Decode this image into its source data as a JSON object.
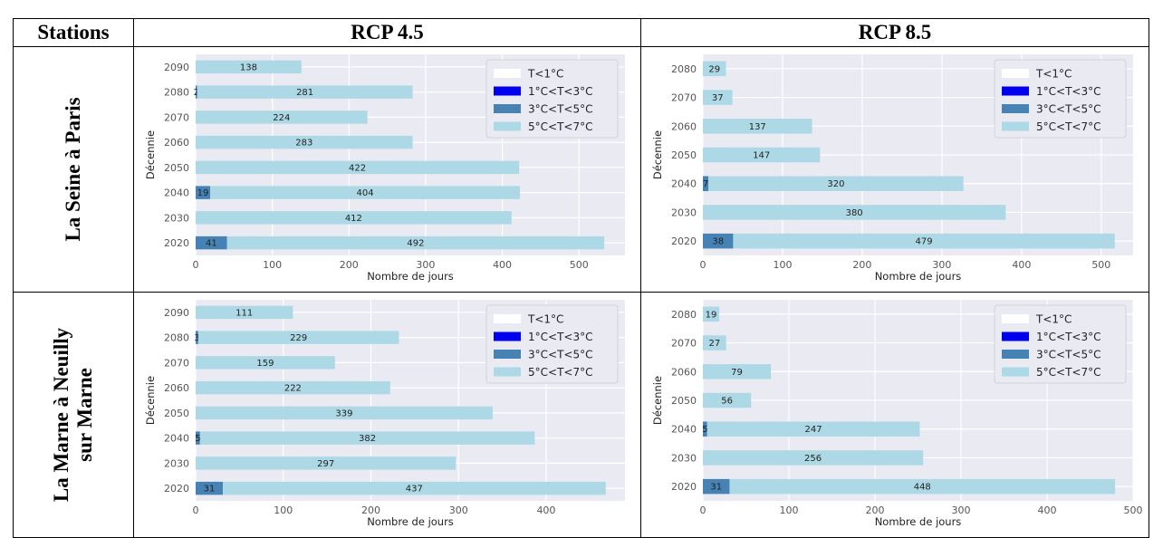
{
  "table": {
    "header": {
      "stations": "Stations",
      "rcp45": "RCP 4.5",
      "rcp85": "RCP 8.5"
    },
    "rows": [
      {
        "station_lines": [
          "La Seine à Paris"
        ]
      },
      {
        "station_lines": [
          "La Marne à Neuilly",
          "sur Marne"
        ]
      }
    ]
  },
  "chart_data": [
    {
      "type": "bar",
      "orientation": "horizontal",
      "stacked": true,
      "station": "La Seine à Paris",
      "scenario": "RCP 4.5",
      "xlabel": "Nombre de jours",
      "ylabel": "Décennie",
      "xlim": [
        0,
        560
      ],
      "xticks": [
        0,
        100,
        200,
        300,
        400,
        500
      ],
      "categories": [
        "2020",
        "2030",
        "2040",
        "2050",
        "2060",
        "2070",
        "2080",
        "2090"
      ],
      "series": [
        {
          "name": "T<1°C",
          "color": "#ffffff",
          "values": [
            0,
            0,
            0,
            0,
            0,
            0,
            0,
            0
          ]
        },
        {
          "name": "1°C<T<3°C",
          "color": "#0000ee",
          "values": [
            0,
            0,
            0,
            0,
            0,
            0,
            0,
            0
          ]
        },
        {
          "name": "3°C<T<5°C",
          "color": "#4682b4",
          "values": [
            41,
            0,
            19,
            0,
            0,
            0,
            2,
            0
          ]
        },
        {
          "name": "5°C<T<7°C",
          "color": "#add8e6",
          "values": [
            492,
            412,
            404,
            422,
            283,
            224,
            281,
            138
          ]
        }
      ],
      "grid": true,
      "legend_position": "top-right"
    },
    {
      "type": "bar",
      "orientation": "horizontal",
      "stacked": true,
      "station": "La Seine à Paris",
      "scenario": "RCP 8.5",
      "xlabel": "Nombre de jours",
      "ylabel": "Décennie",
      "xlim": [
        0,
        540
      ],
      "xticks": [
        0,
        100,
        200,
        300,
        400,
        500
      ],
      "categories": [
        "2020",
        "2030",
        "2040",
        "2050",
        "2060",
        "2070",
        "2080"
      ],
      "series": [
        {
          "name": "T<1°C",
          "color": "#ffffff",
          "values": [
            0,
            0,
            0,
            0,
            0,
            0,
            0
          ]
        },
        {
          "name": "1°C<T<3°C",
          "color": "#0000ee",
          "values": [
            0,
            0,
            0,
            0,
            0,
            0,
            0
          ]
        },
        {
          "name": "3°C<T<5°C",
          "color": "#4682b4",
          "values": [
            38,
            0,
            7,
            0,
            0,
            0,
            0
          ]
        },
        {
          "name": "5°C<T<7°C",
          "color": "#add8e6",
          "values": [
            479,
            380,
            320,
            147,
            137,
            37,
            29
          ]
        }
      ],
      "grid": true,
      "legend_position": "top-right"
    },
    {
      "type": "bar",
      "orientation": "horizontal",
      "stacked": true,
      "station": "La Marne à Neuilly sur Marne",
      "scenario": "RCP 4.5",
      "xlabel": "Nombre de jours",
      "ylabel": "Décennie",
      "xlim": [
        0,
        490
      ],
      "xticks": [
        0,
        100,
        200,
        300,
        400
      ],
      "categories": [
        "2020",
        "2030",
        "2040",
        "2050",
        "2060",
        "2070",
        "2080",
        "2090"
      ],
      "series": [
        {
          "name": "T<1°C",
          "color": "#ffffff",
          "values": [
            0,
            0,
            0,
            0,
            0,
            0,
            0,
            0
          ]
        },
        {
          "name": "1°C<T<3°C",
          "color": "#0000ee",
          "values": [
            0,
            0,
            0,
            0,
            0,
            0,
            0,
            0
          ]
        },
        {
          "name": "3°C<T<5°C",
          "color": "#4682b4",
          "values": [
            31,
            0,
            5,
            0,
            0,
            0,
            3,
            0
          ]
        },
        {
          "name": "5°C<T<7°C",
          "color": "#add8e6",
          "values": [
            437,
            297,
            382,
            339,
            222,
            159,
            229,
            111
          ]
        }
      ],
      "grid": true,
      "legend_position": "top-right"
    },
    {
      "type": "bar",
      "orientation": "horizontal",
      "stacked": true,
      "station": "La Marne à Neuilly sur Marne",
      "scenario": "RCP 8.5",
      "xlabel": "Nombre de jours",
      "ylabel": "Décennie",
      "xlim": [
        0,
        500
      ],
      "xticks": [
        0,
        100,
        200,
        300,
        400,
        500
      ],
      "categories": [
        "2020",
        "2030",
        "2040",
        "2050",
        "2060",
        "2070",
        "2080"
      ],
      "series": [
        {
          "name": "T<1°C",
          "color": "#ffffff",
          "values": [
            0,
            0,
            0,
            0,
            0,
            0,
            0
          ]
        },
        {
          "name": "1°C<T<3°C",
          "color": "#0000ee",
          "values": [
            0,
            0,
            0,
            0,
            0,
            0,
            0
          ]
        },
        {
          "name": "3°C<T<5°C",
          "color": "#4682b4",
          "values": [
            31,
            0,
            5,
            0,
            0,
            0,
            0
          ]
        },
        {
          "name": "5°C<T<7°C",
          "color": "#add8e6",
          "values": [
            448,
            256,
            247,
            56,
            79,
            27,
            19
          ]
        }
      ],
      "grid": true,
      "legend_position": "top-right"
    }
  ]
}
